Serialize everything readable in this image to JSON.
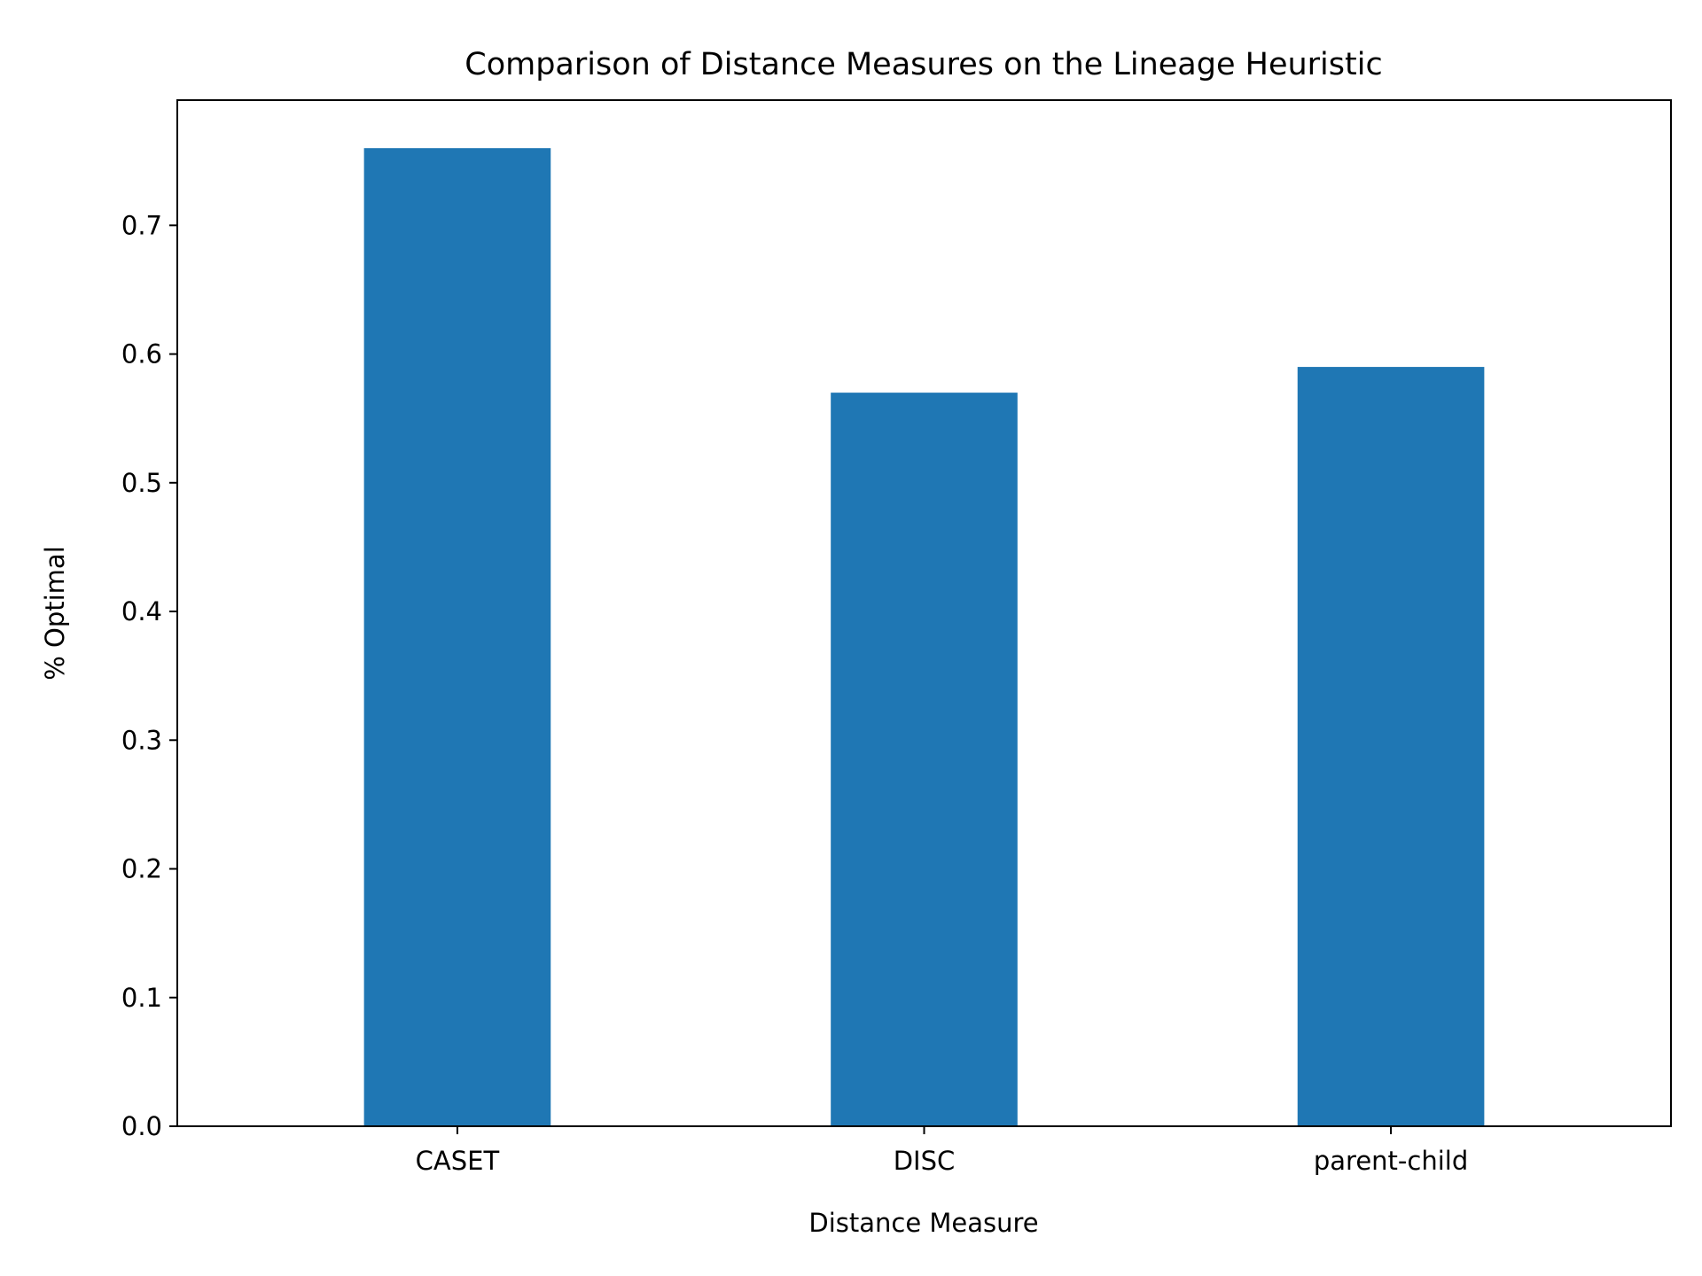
{
  "chart_data": {
    "type": "bar",
    "title": "Comparison of Distance Measures on the Lineage Heuristic",
    "xlabel": "Distance Measure",
    "ylabel": "% Optimal",
    "categories": [
      "CASET",
      "DISC",
      "parent-child"
    ],
    "values": [
      0.76,
      0.57,
      0.59
    ],
    "ylim": [
      0,
      0.8
    ],
    "yticks": [
      0.0,
      0.1,
      0.2,
      0.3,
      0.4,
      0.5,
      0.6,
      0.7
    ],
    "ytick_labels": [
      "0.0",
      "0.1",
      "0.2",
      "0.3",
      "0.4",
      "0.5",
      "0.6",
      "0.7"
    ],
    "bar_color": "#1f77b4",
    "grid": false,
    "legend": false
  }
}
